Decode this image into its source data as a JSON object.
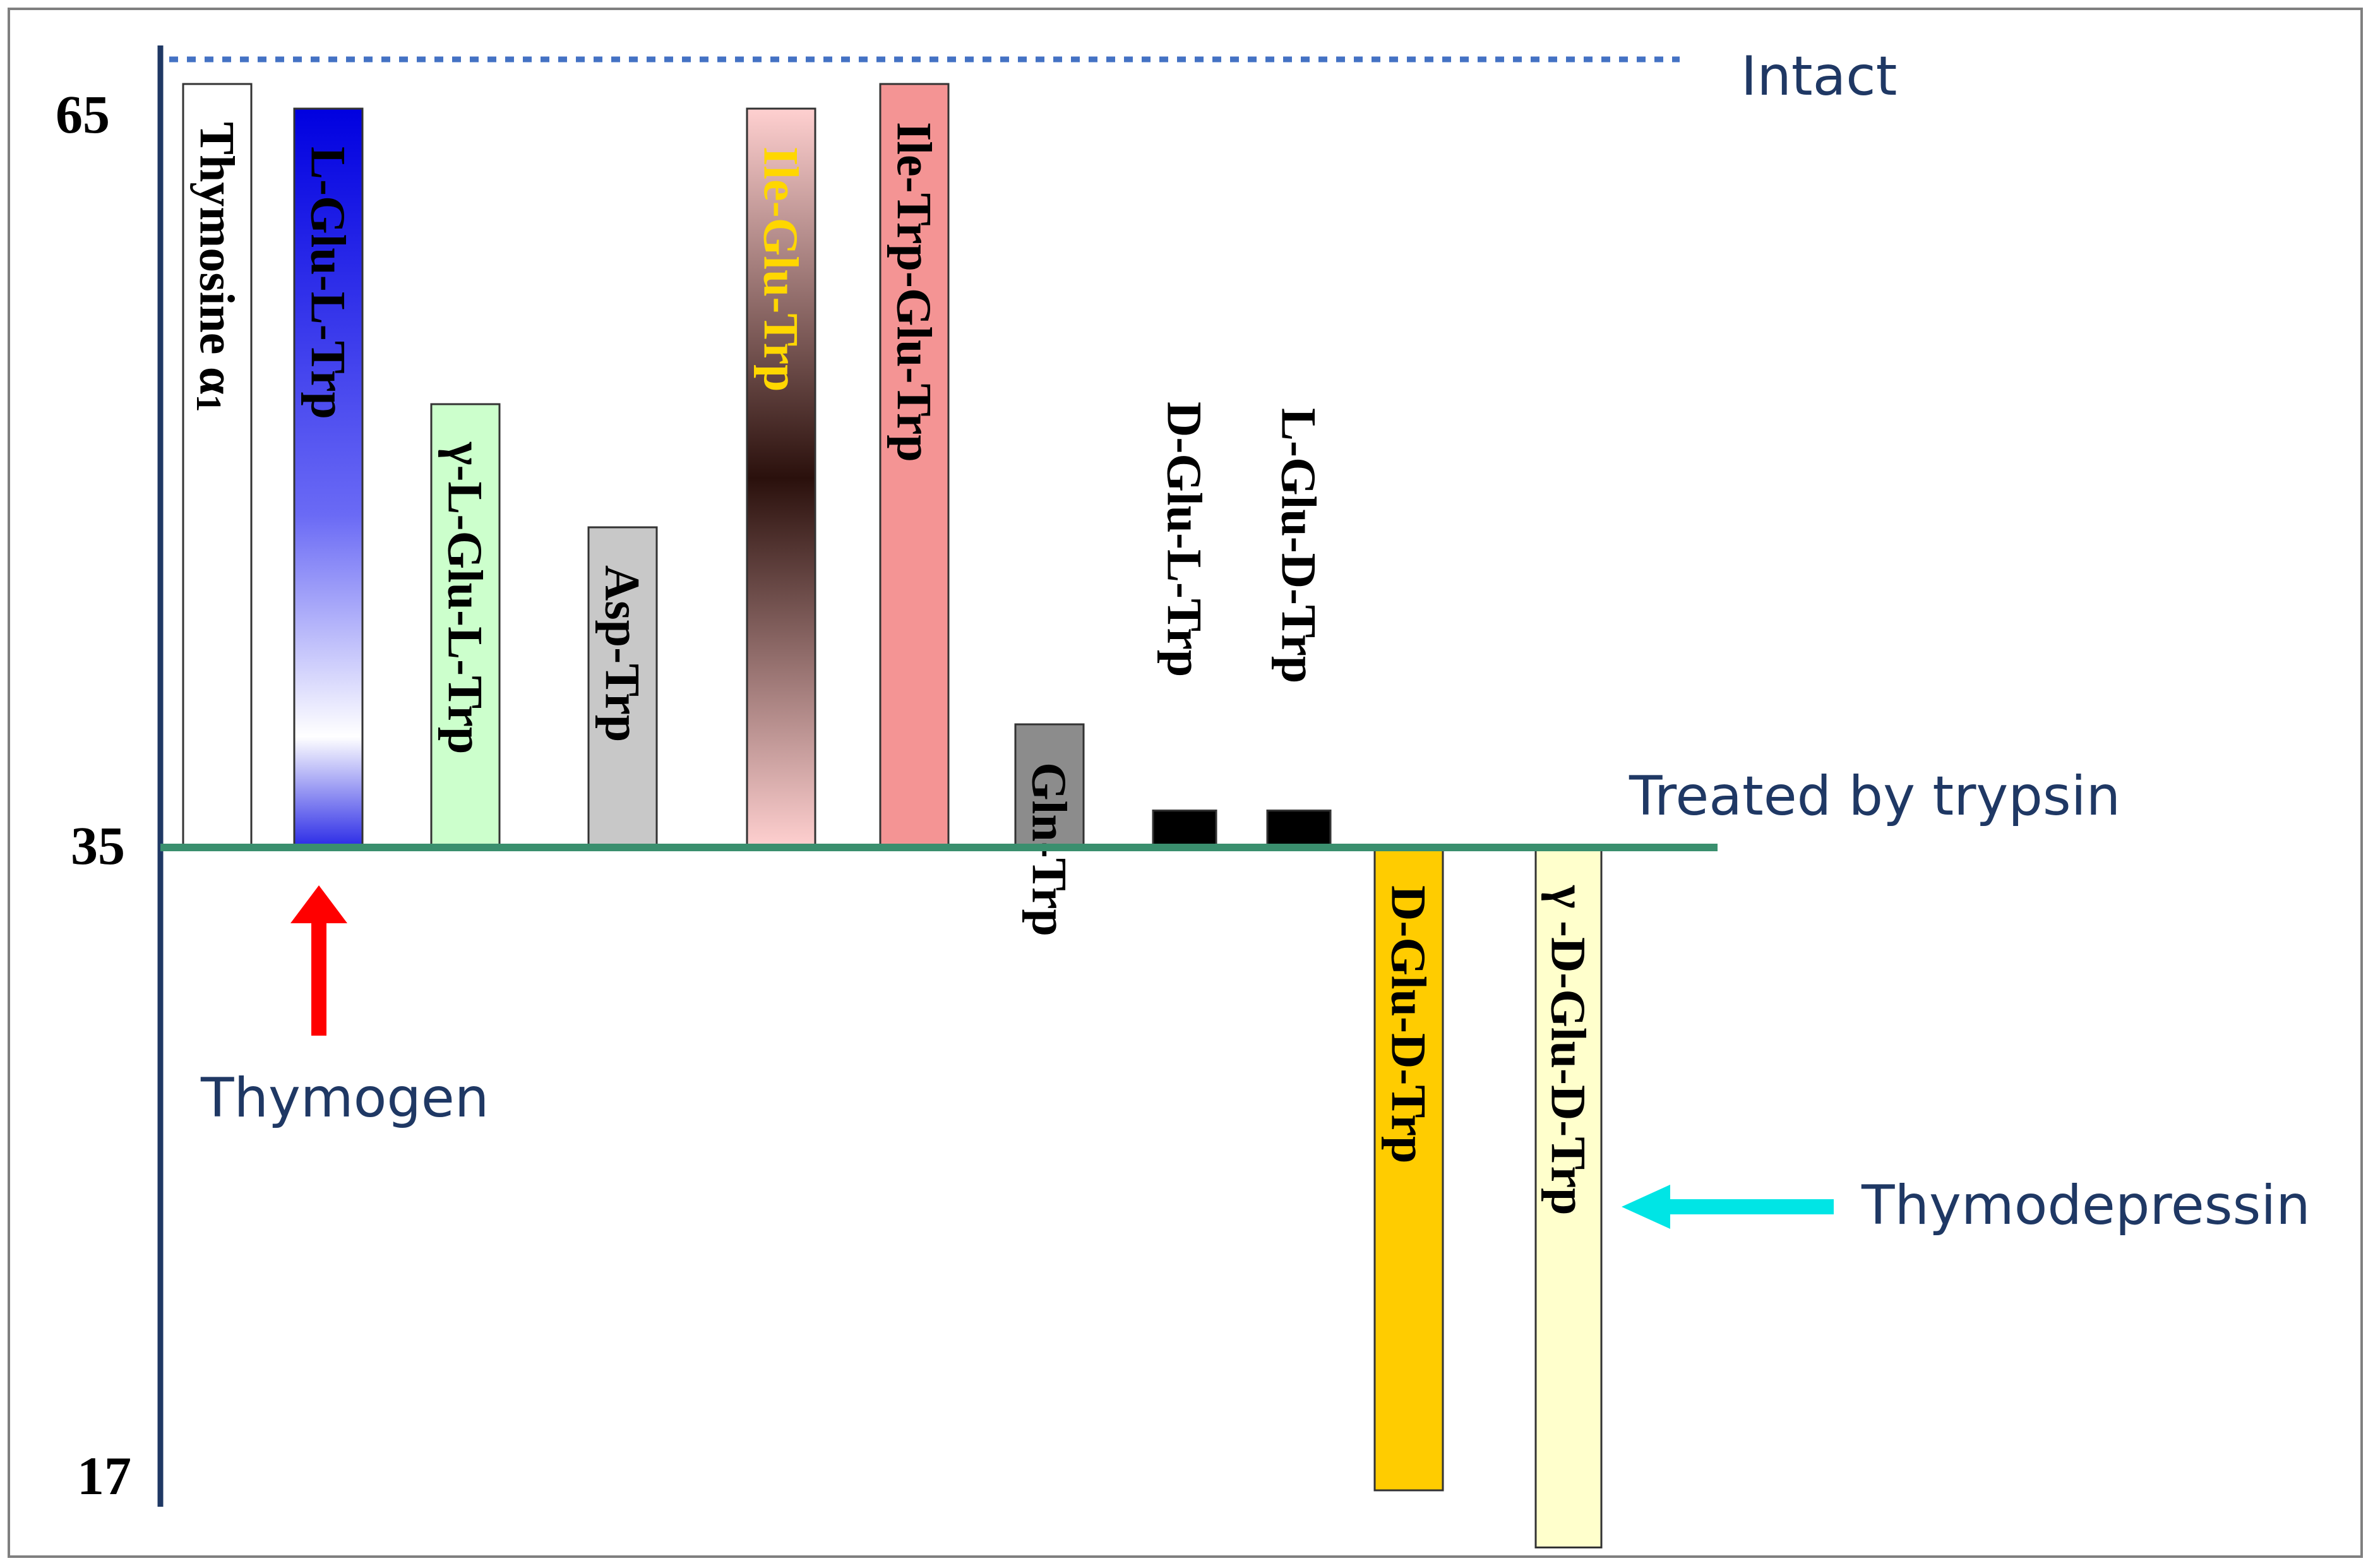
{
  "chart_data": {
    "type": "bar",
    "baseline": 35,
    "y_ticks": [
      "65",
      "35",
      "17"
    ],
    "bars": [
      {
        "label": "Thymosine α",
        "subscript": "1",
        "value": 66,
        "fill": "#ffffff",
        "text_color": "#000000",
        "gradient": "none"
      },
      {
        "label": "L-Glu-L-Trp",
        "value": 65,
        "fill": "#2a2ae6",
        "text_color": "#000000",
        "gradient": "blue-fade"
      },
      {
        "label": "γ-L-Glu-L-Trp",
        "value": 53,
        "fill": "#ccffcc",
        "text_color": "#000000",
        "gradient": "none"
      },
      {
        "label": "Asp-Trp",
        "value": 48,
        "fill": "#c8c8c8",
        "text_color": "#000000",
        "gradient": "none"
      },
      {
        "label": "Ile-Glu-Trp",
        "value": 65,
        "fill": "#3a1a14",
        "text_color": "#ffd700",
        "gradient": "pink-dark-pink"
      },
      {
        "label": "Ile-Trp-Glu-Trp",
        "value": 66,
        "fill": "#f49494",
        "text_color": "#000000",
        "gradient": "none"
      },
      {
        "label": "Gln-Trp",
        "value": 40,
        "fill": "#8c8c8c",
        "text_color": "#000000",
        "gradient": "none"
      },
      {
        "label": "D-Glu-L-Trp",
        "value": 36.5,
        "fill": "#000000",
        "text_color": "#000000",
        "gradient": "none"
      },
      {
        "label": "L-Glu-D-Trp",
        "value": 36.5,
        "fill": "#000000",
        "text_color": "#000000",
        "gradient": "none"
      },
      {
        "label": "D-Glu-D-Trp",
        "value": 17,
        "fill": "#ffcc00",
        "text_color": "#000000",
        "gradient": "none"
      },
      {
        "label": "γ -D-Glu-D-Trp",
        "value": 15.4,
        "fill": "#ffffcc",
        "text_color": "#000000",
        "gradient": "none"
      }
    ],
    "reference_lines": [
      {
        "label": "Intact",
        "value": 67,
        "style": "dotted",
        "color": "#4472c4"
      },
      {
        "label": "Treated by trypsin",
        "value": 35,
        "style": "solid",
        "color": "#3a8f6e"
      }
    ],
    "annotations": [
      {
        "label": "Thymogen",
        "arrow_color": "#ff0000",
        "points_to": "L-Glu-L-Trp"
      },
      {
        "label": "Thymodepressin",
        "arrow_color": "#00e5e5",
        "points_to": "γ -D-Glu-D-Trp"
      }
    ],
    "colors": {
      "axis": "#1f3864",
      "annotation_text": "#1f3864"
    }
  }
}
